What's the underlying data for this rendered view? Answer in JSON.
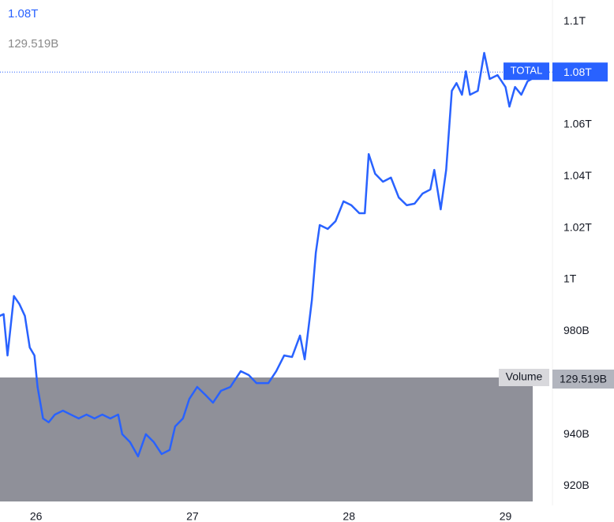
{
  "chart_data": {
    "type": "line",
    "current": {
      "value": 1080.4,
      "label": "1.08T"
    },
    "volume_label": "Volume",
    "volume_value": "129.519B",
    "series": [
      {
        "name": "TOTAL",
        "color": "#2962ff",
        "x": [
          25.768,
          25.793,
          25.818,
          25.859,
          25.894,
          25.929,
          25.96,
          25.99,
          26.01,
          26.045,
          26.081,
          26.121,
          26.172,
          26.222,
          26.273,
          26.323,
          26.374,
          26.424,
          26.475,
          26.525,
          26.551,
          26.601,
          26.652,
          26.702,
          26.753,
          26.803,
          26.854,
          26.889,
          26.939,
          26.98,
          27.03,
          27.081,
          27.131,
          27.182,
          27.242,
          27.308,
          27.359,
          27.409,
          27.485,
          27.535,
          27.586,
          27.636,
          27.687,
          27.717,
          27.763,
          27.788,
          27.813,
          27.864,
          27.914,
          27.965,
          28.015,
          28.066,
          28.101,
          28.126,
          28.167,
          28.217,
          28.268,
          28.318,
          28.369,
          28.419,
          28.47,
          28.52,
          28.545,
          28.586,
          28.621,
          28.657,
          28.687,
          28.722,
          28.747,
          28.773,
          28.823,
          28.864,
          28.899,
          28.949,
          29.0,
          29.025,
          29.061,
          29.101,
          29.141,
          29.167
        ],
        "values": [
          985.9,
          986.6,
          970.6,
          993.6,
          990.5,
          985.9,
          973.7,
          970.6,
          958.4,
          946.2,
          944.7,
          947.7,
          949.2,
          947.7,
          946.2,
          947.7,
          946.2,
          947.7,
          946.2,
          947.7,
          940.1,
          937.0,
          931.5,
          940.1,
          937.0,
          932.4,
          934.0,
          943.1,
          946.2,
          953.8,
          958.4,
          955.4,
          952.3,
          956.9,
          958.4,
          964.5,
          963.0,
          959.9,
          959.9,
          964.5,
          970.6,
          970.0,
          978.3,
          969.1,
          992.1,
          1010.4,
          1021.1,
          1019.6,
          1022.6,
          1030.3,
          1028.8,
          1025.7,
          1025.7,
          1048.6,
          1041.0,
          1037.9,
          1039.5,
          1031.8,
          1028.8,
          1029.4,
          1033.3,
          1034.9,
          1042.5,
          1027.2,
          1042.5,
          1073.1,
          1076.1,
          1071.6,
          1080.7,
          1071.6,
          1073.1,
          1087.8,
          1077.7,
          1079.2,
          1074.6,
          1067.0,
          1074.6,
          1071.6,
          1076.8,
          1077.7
        ]
      }
    ],
    "xlim": [
      25.77,
      29.3
    ],
    "xticks": [
      26,
      27,
      28,
      29
    ],
    "ylim": [
      912.5,
      1108.3
    ],
    "yticks": [
      {
        "value": 920,
        "label": "920B"
      },
      {
        "value": 940,
        "label": "940B"
      },
      {
        "value": 980,
        "label": "980B"
      },
      {
        "value": 1000,
        "label": "1T"
      },
      {
        "value": 1020,
        "label": "1.02T"
      },
      {
        "value": 1040,
        "label": "1.04T"
      },
      {
        "value": 1060,
        "label": "1.06T"
      },
      {
        "value": 1100,
        "label": "1.1T"
      }
    ],
    "grid": false
  }
}
